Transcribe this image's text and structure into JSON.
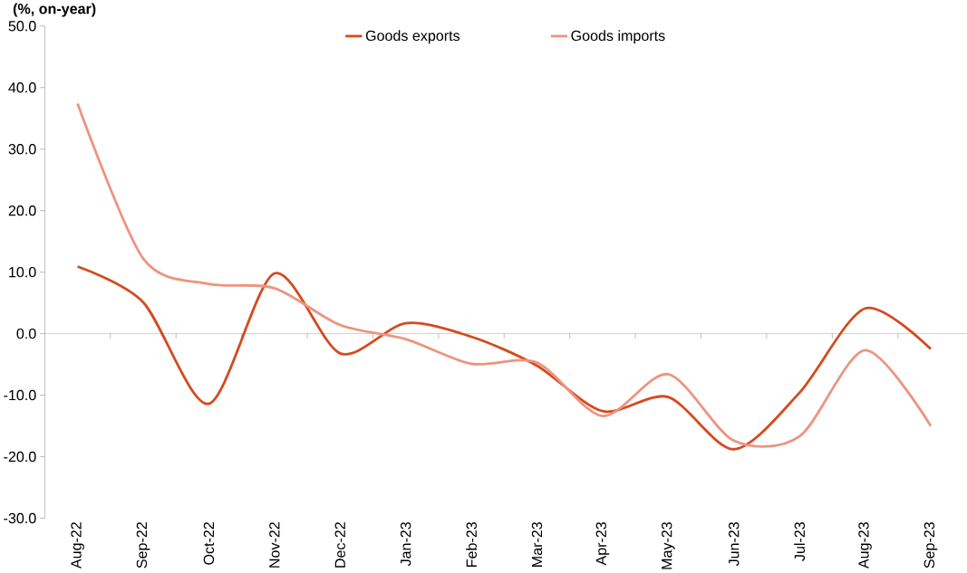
{
  "chart_data": {
    "type": "line",
    "ylabel": "(%, on-year)",
    "categories": [
      "Aug-22",
      "Sep-22",
      "Oct-22",
      "Nov-22",
      "Dec-22",
      "Jan-23",
      "Feb-23",
      "Mar-23",
      "Apr-23",
      "May-23",
      "Jun-23",
      "Jul-23",
      "Aug-23",
      "Sep-23"
    ],
    "series": [
      {
        "name": "Goods exports",
        "color": "#d44a1f",
        "values": [
          10.9,
          5.1,
          -11.4,
          9.8,
          -3.2,
          1.7,
          -0.5,
          -5.2,
          -12.6,
          -10.3,
          -18.8,
          -9.6,
          4.1,
          -2.5
        ]
      },
      {
        "name": "Goods imports",
        "color": "#eb9580",
        "values": [
          37.4,
          12.2,
          8.1,
          7.4,
          1.4,
          -0.9,
          -4.9,
          -4.7,
          -13.4,
          -6.6,
          -17.4,
          -16.7,
          -2.7,
          -15.0
        ]
      }
    ],
    "ylim": [
      -30,
      50
    ],
    "yticks": [
      {
        "value": -30,
        "label": "-30.0"
      },
      {
        "value": -20,
        "label": "-20.0"
      },
      {
        "value": -10,
        "label": "-10.0"
      },
      {
        "value": 0,
        "label": "0.0"
      },
      {
        "value": 10,
        "label": "10.0"
      },
      {
        "value": 20,
        "label": "20.0"
      },
      {
        "value": 30,
        "label": "30.0"
      },
      {
        "value": 40,
        "label": "40.0"
      },
      {
        "value": 50,
        "label": "50.0"
      }
    ],
    "legend": "top",
    "marker": "none",
    "line_style": "solid"
  }
}
